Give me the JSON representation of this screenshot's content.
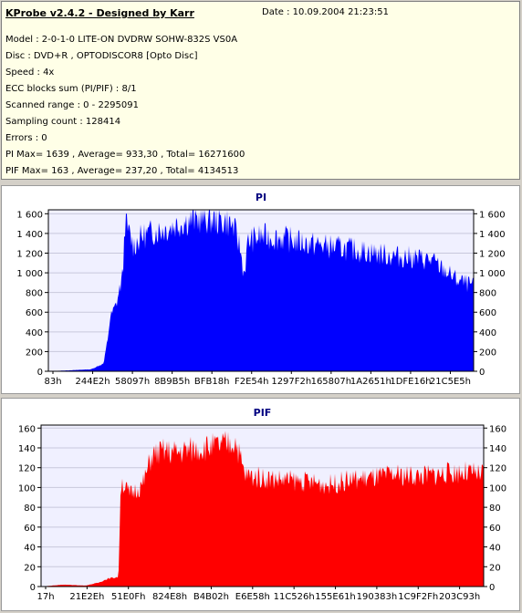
{
  "info": {
    "title": "KProbe v2.4.2 - Designed by Karr",
    "date": "Date : 10.09.2004 21:23:51",
    "lines": [
      "Model : 2-0-1-0 LITE-ON DVDRW SOHW-832S  VS0A",
      "Disc : DVD+R , OPTODISCOR8 [Opto Disc]",
      "Speed : 4x",
      "ECC blocks sum (PI/PIF) : 8/1",
      "Scanned range : 0 - 2295091",
      "Sampling count : 128414",
      "Errors : 0",
      "PI Max= 1639 , Average= 933,30 , Total= 16271600",
      "PIF Max= 163 , Average= 237,20 , Total= 4134513"
    ]
  },
  "chart_data": [
    {
      "type": "area",
      "title": "PI",
      "color": "#0000ff",
      "ylim": [
        0,
        1640
      ],
      "yticks": [
        0,
        200,
        400,
        600,
        800,
        1000,
        1200,
        1400,
        1600
      ],
      "ytick_labels": [
        "0",
        "200",
        "400",
        "600",
        "800",
        "1 000",
        "1 200",
        "1 400",
        "1 600"
      ],
      "xtick_labels": [
        "83h",
        "244E2h",
        "58097h",
        "8B9B5h",
        "BFB18h",
        "F2E54h",
        "1297F2h",
        "165807h",
        "1A2651h",
        "1DFE16h",
        "21C5E5h"
      ],
      "grid": true,
      "x": [
        0,
        0.1,
        0.13,
        0.14,
        0.145,
        0.16,
        0.175,
        0.18,
        0.2,
        0.22,
        0.25,
        0.28,
        0.3,
        0.33,
        0.36,
        0.4,
        0.42,
        0.435,
        0.45,
        0.46,
        0.47,
        0.5,
        0.55,
        0.6,
        0.65,
        0.7,
        0.75,
        0.8,
        0.85,
        0.9,
        0.93,
        0.96,
        1.0
      ],
      "y": [
        0,
        20,
        80,
        350,
        550,
        700,
        1000,
        1550,
        1300,
        1400,
        1450,
        1480,
        1520,
        1560,
        1580,
        1560,
        1550,
        1500,
        1300,
        1000,
        1350,
        1400,
        1380,
        1330,
        1300,
        1270,
        1240,
        1200,
        1180,
        1150,
        1050,
        950,
        880
      ]
    },
    {
      "type": "area",
      "title": "PIF",
      "color": "#ff0000",
      "ylim": [
        0,
        163
      ],
      "yticks": [
        0,
        20,
        40,
        60,
        80,
        100,
        120,
        140,
        160
      ],
      "ytick_labels": [
        "0",
        "20",
        "40",
        "60",
        "80",
        "100",
        "120",
        "140",
        "160"
      ],
      "xtick_labels": [
        "17h",
        "21E2Eh",
        "51E0Fh",
        "824E8h",
        "B4B02h",
        "E6E58h",
        "11C526h",
        "155E61h",
        "190383h",
        "1C9F2Fh",
        "203C93h"
      ],
      "grid": true,
      "x": [
        0,
        0.05,
        0.1,
        0.13,
        0.15,
        0.175,
        0.18,
        0.2,
        0.23,
        0.25,
        0.28,
        0.3,
        0.35,
        0.4,
        0.43,
        0.44,
        0.46,
        0.5,
        0.55,
        0.6,
        0.65,
        0.7,
        0.75,
        0.8,
        0.85,
        0.9,
        0.95,
        1.0
      ],
      "y": [
        0,
        2,
        1,
        4,
        8,
        10,
        110,
        95,
        105,
        135,
        140,
        138,
        142,
        145,
        148,
        150,
        115,
        112,
        110,
        108,
        105,
        110,
        112,
        115,
        114,
        116,
        118,
        115
      ]
    }
  ]
}
